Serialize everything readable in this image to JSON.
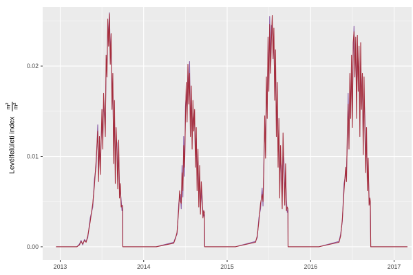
{
  "figure": {
    "background": "#FFFFFF",
    "panel_background": "#EBEBEB",
    "grid_major_color": "#FFFFFF",
    "grid_minor_color": "#FFFFFF",
    "axis_text_color": "#4D4D4D",
    "axis_title_color": "#000000",
    "tick_mark_color": "#333333"
  },
  "chart_data": {
    "type": "line",
    "title": "",
    "xlabel": "",
    "ylabel": "Levélfelületi index m²/m²",
    "ylabel_parts": {
      "text": "Levélfelületi index",
      "fraction_numerator": "m²",
      "fraction_denominator": "m²"
    },
    "legend": "none",
    "grid": true,
    "x_axis": {
      "lim": [
        2012.79,
        2017.21
      ],
      "ticks": [
        2013,
        2014,
        2015,
        2016,
        2017
      ],
      "tick_labels": [
        "2013",
        "2014",
        "2015",
        "2016",
        "2017"
      ],
      "minor": [
        2013.5,
        2014.5,
        2015.5,
        2016.5
      ]
    },
    "y_axis": {
      "lim": [
        -0.00145,
        0.02655
      ],
      "ticks": [
        0,
        0.01,
        0.02
      ],
      "tick_labels": [
        "0.00",
        "0.01",
        "0.02"
      ],
      "minor": [
        0.005,
        0.015,
        0.025
      ]
    },
    "x": [
      2012.95,
      2013.1,
      2013.2,
      2013.23,
      2013.25,
      2013.27,
      2013.29,
      2013.31,
      2013.33,
      2013.36,
      2013.39,
      2013.41,
      2013.43,
      2013.45,
      2013.46,
      2013.47,
      2013.48,
      2013.5,
      2013.51,
      2013.52,
      2013.54,
      2013.55,
      2013.56,
      2013.57,
      2013.58,
      2013.59,
      2013.6,
      2013.61,
      2013.62,
      2013.63,
      2013.64,
      2013.65,
      2013.66,
      2013.67,
      2013.68,
      2013.69,
      2013.7,
      2013.71,
      2013.72,
      2013.73,
      2013.74,
      2013.748,
      2013.75,
      2013.8,
      2013.95,
      2014.15,
      2014.36,
      2014.38,
      2014.4,
      2014.42,
      2014.43,
      2014.44,
      2014.45,
      2014.46,
      2014.47,
      2014.48,
      2014.49,
      2014.5,
      2014.51,
      2014.52,
      2014.53,
      2014.54,
      2014.55,
      2014.56,
      2014.57,
      2014.58,
      2014.59,
      2014.6,
      2014.61,
      2014.62,
      2014.63,
      2014.64,
      2014.65,
      2014.66,
      2014.67,
      2014.68,
      2014.69,
      2014.7,
      2014.71,
      2014.72,
      2014.728,
      2014.73,
      2014.85,
      2015.1,
      2015.34,
      2015.36,
      2015.38,
      2015.4,
      2015.42,
      2015.43,
      2015.44,
      2015.45,
      2015.46,
      2015.47,
      2015.48,
      2015.49,
      2015.5,
      2015.51,
      2015.52,
      2015.53,
      2015.54,
      2015.55,
      2015.56,
      2015.57,
      2015.58,
      2015.59,
      2015.6,
      2015.61,
      2015.62,
      2015.63,
      2015.64,
      2015.65,
      2015.66,
      2015.67,
      2015.68,
      2015.69,
      2015.7,
      2015.71,
      2015.72,
      2015.728,
      2015.73,
      2015.85,
      2016.1,
      2016.34,
      2016.36,
      2016.38,
      2016.4,
      2016.42,
      2016.43,
      2016.44,
      2016.45,
      2016.46,
      2016.47,
      2016.48,
      2016.49,
      2016.5,
      2016.51,
      2016.52,
      2016.53,
      2016.54,
      2016.55,
      2016.56,
      2016.57,
      2016.58,
      2016.59,
      2016.6,
      2016.61,
      2016.62,
      2016.63,
      2016.64,
      2016.65,
      2016.66,
      2016.67,
      2016.68,
      2016.69,
      2016.7,
      2016.71,
      2016.715,
      2016.72,
      2016.85,
      2017.0,
      2017.16
    ],
    "series": [
      {
        "name": "series-purple",
        "color": "#8A5CA8",
        "values": [
          0,
          0,
          0,
          0.0003,
          0.0007,
          0.0002,
          0.0008,
          0.0006,
          0.001,
          0.0032,
          0.0044,
          0.0075,
          0.0088,
          0.0135,
          0.008,
          0.0112,
          0.0092,
          0.014,
          0.012,
          0.0158,
          0.0135,
          0.02,
          0.02,
          0.024,
          0.0235,
          0.0259,
          0.0215,
          0.0222,
          0.0168,
          0.0178,
          0.0108,
          0.0148,
          0.0085,
          0.012,
          0.0115,
          0.0075,
          0.0105,
          0.0065,
          0.0062,
          0.0052,
          0.004,
          0.0042,
          0,
          0,
          0,
          0,
          0.0005,
          0.001,
          0.0014,
          0.0048,
          0.0055,
          0.0058,
          0.0042,
          0.009,
          0.0055,
          0.0122,
          0.0078,
          0.0155,
          0.017,
          0.015,
          0.019,
          0.0172,
          0.0205,
          0.0135,
          0.0165,
          0.0122,
          0.015,
          0.014,
          0.0138,
          0.01,
          0.012,
          0.0075,
          0.0095,
          0.0055,
          0.0078,
          0.0045,
          0.0062,
          0.0048,
          0.004,
          0.0034,
          0.0036,
          0,
          0,
          0,
          0.0006,
          0.001,
          0.0032,
          0.0042,
          0.0065,
          0.0045,
          0.0098,
          0.013,
          0.011,
          0.017,
          0.0158,
          0.0215,
          0.019,
          0.0255,
          0.0205,
          0.0245,
          0.0238,
          0.0225,
          0.0222,
          0.018,
          0.0195,
          0.014,
          0.016,
          0.0105,
          0.012,
          0.007,
          0.0095,
          0.009,
          0.0055,
          0.0108,
          0.0095,
          0.0058,
          0.0078,
          0.0052,
          0.0038,
          0.004,
          0,
          0,
          0,
          0.0006,
          0.0014,
          0.0028,
          0.007,
          0.008,
          0.0085,
          0.0115,
          0.017,
          0.012,
          0.0175,
          0.016,
          0.0195,
          0.015,
          0.021,
          0.0244,
          0.0205,
          0.0215,
          0.0165,
          0.0215,
          0.019,
          0.02,
          0.0145,
          0.0205,
          0.017,
          0.0175,
          0.012,
          0.0165,
          0.0145,
          0.0095,
          0.0115,
          0.0078,
          0.0085,
          0.0055,
          0.0048,
          0.0046,
          0,
          0,
          0,
          0
        ]
      },
      {
        "name": "series-red",
        "color": "#A52D3C",
        "values": [
          0,
          0,
          0,
          0.0002,
          0.0006,
          0.0003,
          0.0007,
          0.0005,
          0.0012,
          0.0028,
          0.0048,
          0.0068,
          0.0095,
          0.0128,
          0.0072,
          0.0122,
          0.008,
          0.0152,
          0.0108,
          0.017,
          0.0122,
          0.0212,
          0.0188,
          0.0252,
          0.0222,
          0.0258,
          0.0202,
          0.0236,
          0.0152,
          0.0192,
          0.0092,
          0.0162,
          0.007,
          0.0132,
          0.0106,
          0.0064,
          0.0118,
          0.0054,
          0.007,
          0.0044,
          0.0046,
          0.0045,
          0,
          0,
          0,
          0,
          0.0004,
          0.0009,
          0.0016,
          0.0042,
          0.0062,
          0.005,
          0.0048,
          0.0082,
          0.0062,
          0.0112,
          0.0088,
          0.0142,
          0.0182,
          0.0138,
          0.0202,
          0.0158,
          0.0192,
          0.0122,
          0.0178,
          0.0108,
          0.0162,
          0.0128,
          0.0152,
          0.0088,
          0.0132,
          0.0062,
          0.0108,
          0.0044,
          0.009,
          0.0036,
          0.0072,
          0.0056,
          0.0032,
          0.004,
          0.0038,
          0,
          0,
          0,
          0.0005,
          0.0012,
          0.0028,
          0.0048,
          0.0058,
          0.005,
          0.0088,
          0.0145,
          0.0098,
          0.0188,
          0.0142,
          0.0232,
          0.0172,
          0.0246,
          0.0192,
          0.0228,
          0.0256,
          0.0208,
          0.0242,
          0.0162,
          0.0218,
          0.0122,
          0.0182,
          0.0088,
          0.0142,
          0.0054,
          0.0112,
          0.0078,
          0.0042,
          0.0126,
          0.0082,
          0.0046,
          0.0092,
          0.004,
          0.0044,
          0.0042,
          0,
          0,
          0,
          0.0005,
          0.0012,
          0.003,
          0.0062,
          0.0088,
          0.0072,
          0.0128,
          0.0158,
          0.0108,
          0.0192,
          0.0142,
          0.0212,
          0.0132,
          0.0226,
          0.0238,
          0.0188,
          0.0232,
          0.0142,
          0.0234,
          0.0172,
          0.0222,
          0.0122,
          0.0226,
          0.0152,
          0.0192,
          0.0102,
          0.0188,
          0.0128,
          0.0082,
          0.0132,
          0.0062,
          0.0098,
          0.0046,
          0.0054,
          0.005,
          0,
          0,
          0,
          0
        ]
      }
    ]
  }
}
